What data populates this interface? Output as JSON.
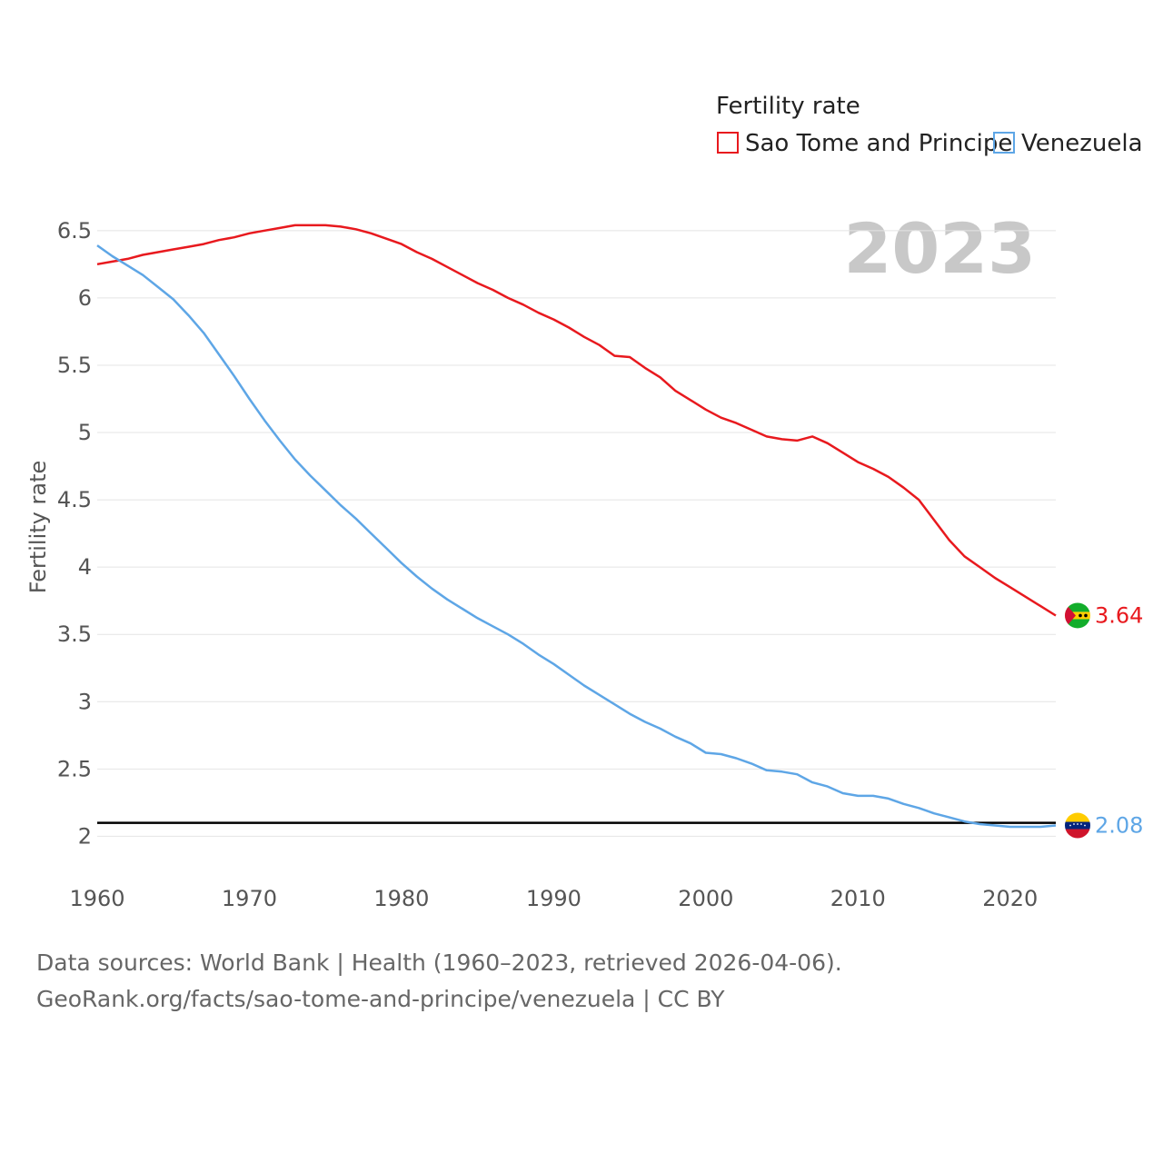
{
  "chart_data": {
    "type": "line",
    "legend_title": "Fertility rate",
    "ylabel": "Fertility rate",
    "year_watermark": "2023",
    "xlim": [
      1960,
      2023
    ],
    "ylim": [
      1.8,
      6.6
    ],
    "x_ticks": [
      1960,
      1970,
      1980,
      1990,
      2000,
      2010,
      2020
    ],
    "y_ticks": [
      {
        "value": 2,
        "label": "2"
      },
      {
        "value": 2.5,
        "label": "2.5"
      },
      {
        "value": 3,
        "label": "3"
      },
      {
        "value": 3.5,
        "label": "3.5"
      },
      {
        "value": 4,
        "label": "4"
      },
      {
        "value": 4.5,
        "label": "4.5"
      },
      {
        "value": 5,
        "label": "5"
      },
      {
        "value": 5.5,
        "label": "5.5"
      },
      {
        "value": 6,
        "label": "6"
      },
      {
        "value": 6.5,
        "label": "6.5"
      }
    ],
    "reference_line": {
      "value": 2.1,
      "color": "#000000"
    },
    "series": [
      {
        "name": "Sao Tome and Principe",
        "color": "#e8191e",
        "end_label": "3.64",
        "flag": "sao-tome-flag-icon",
        "x": [
          1960,
          1961,
          1962,
          1963,
          1964,
          1965,
          1966,
          1967,
          1968,
          1969,
          1970,
          1971,
          1972,
          1973,
          1974,
          1975,
          1976,
          1977,
          1978,
          1979,
          1980,
          1981,
          1982,
          1983,
          1984,
          1985,
          1986,
          1987,
          1988,
          1989,
          1990,
          1991,
          1992,
          1993,
          1994,
          1995,
          1996,
          1997,
          1998,
          1999,
          2000,
          2001,
          2002,
          2003,
          2004,
          2005,
          2006,
          2007,
          2008,
          2009,
          2010,
          2011,
          2012,
          2013,
          2014,
          2015,
          2016,
          2017,
          2018,
          2019,
          2020,
          2021,
          2022,
          2023
        ],
        "values": [
          6.25,
          6.27,
          6.29,
          6.32,
          6.34,
          6.36,
          6.38,
          6.4,
          6.43,
          6.45,
          6.48,
          6.5,
          6.52,
          6.54,
          6.54,
          6.54,
          6.53,
          6.51,
          6.48,
          6.44,
          6.4,
          6.34,
          6.29,
          6.23,
          6.17,
          6.11,
          6.06,
          6.0,
          5.95,
          5.89,
          5.84,
          5.78,
          5.71,
          5.65,
          5.57,
          5.56,
          5.48,
          5.41,
          5.31,
          5.24,
          5.17,
          5.11,
          5.07,
          5.02,
          4.97,
          4.95,
          4.94,
          4.97,
          4.92,
          4.85,
          4.78,
          4.73,
          4.67,
          4.59,
          4.5,
          4.35,
          4.2,
          4.08,
          4.0,
          3.92,
          3.85,
          3.78,
          3.71,
          3.64
        ]
      },
      {
        "name": "Venezuela",
        "color": "#5ea6e6",
        "end_label": "2.08",
        "flag": "venezuela-flag-icon",
        "x": [
          1960,
          1961,
          1962,
          1963,
          1964,
          1965,
          1966,
          1967,
          1968,
          1969,
          1970,
          1971,
          1972,
          1973,
          1974,
          1975,
          1976,
          1977,
          1978,
          1979,
          1980,
          1981,
          1982,
          1983,
          1984,
          1985,
          1986,
          1987,
          1988,
          1989,
          1990,
          1991,
          1992,
          1993,
          1994,
          1995,
          1996,
          1997,
          1998,
          1999,
          2000,
          2001,
          2002,
          2003,
          2004,
          2005,
          2006,
          2007,
          2008,
          2009,
          2010,
          2011,
          2012,
          2013,
          2014,
          2015,
          2016,
          2017,
          2018,
          2019,
          2020,
          2021,
          2022,
          2023
        ],
        "values": [
          6.39,
          6.31,
          6.24,
          6.17,
          6.08,
          5.99,
          5.87,
          5.74,
          5.58,
          5.42,
          5.25,
          5.09,
          4.94,
          4.8,
          4.68,
          4.57,
          4.46,
          4.36,
          4.25,
          4.14,
          4.03,
          3.93,
          3.84,
          3.76,
          3.69,
          3.62,
          3.56,
          3.5,
          3.43,
          3.35,
          3.28,
          3.2,
          3.12,
          3.05,
          2.98,
          2.91,
          2.85,
          2.8,
          2.74,
          2.69,
          2.62,
          2.61,
          2.58,
          2.54,
          2.49,
          2.48,
          2.46,
          2.4,
          2.37,
          2.32,
          2.3,
          2.3,
          2.28,
          2.24,
          2.21,
          2.17,
          2.14,
          2.11,
          2.09,
          2.08,
          2.07,
          2.07,
          2.07,
          2.08
        ]
      }
    ]
  },
  "footer": {
    "line1": "Data sources: World Bank | Health (1960–2023, retrieved 2026-04-06).",
    "line2": "GeoRank.org/facts/sao-tome-and-principe/venezuela | CC BY"
  }
}
